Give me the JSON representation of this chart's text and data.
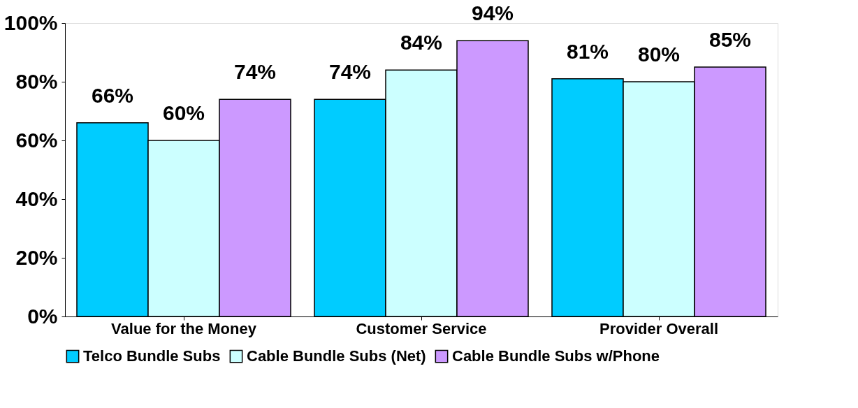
{
  "chart_data": {
    "type": "bar",
    "categories": [
      "Value for the Money",
      "Customer Service",
      "Provider Overall"
    ],
    "series": [
      {
        "name": "Telco Bundle Subs",
        "color": "#00ccff",
        "values": [
          66,
          74,
          81
        ],
        "value_labels": [
          "66%",
          "74%",
          "81%"
        ]
      },
      {
        "name": "Cable Bundle Subs (Net)",
        "color": "#ccffff",
        "values": [
          60,
          84,
          80
        ],
        "value_labels": [
          "60%",
          "84%",
          "80%"
        ]
      },
      {
        "name": "Cable Bundle Subs w/Phone",
        "color": "#cc99ff",
        "values": [
          74,
          94,
          85
        ],
        "value_labels": [
          "74%",
          "94%",
          "85%"
        ]
      }
    ],
    "ylim": [
      0,
      100
    ],
    "yticks": [
      {
        "value": 0,
        "label": "0%"
      },
      {
        "value": 20,
        "label": "20%"
      },
      {
        "value": 40,
        "label": "40%"
      },
      {
        "value": 60,
        "label": "60%"
      },
      {
        "value": 80,
        "label": "80%"
      },
      {
        "value": 100,
        "label": "100%"
      }
    ],
    "grid": false,
    "legend": "bottom"
  }
}
